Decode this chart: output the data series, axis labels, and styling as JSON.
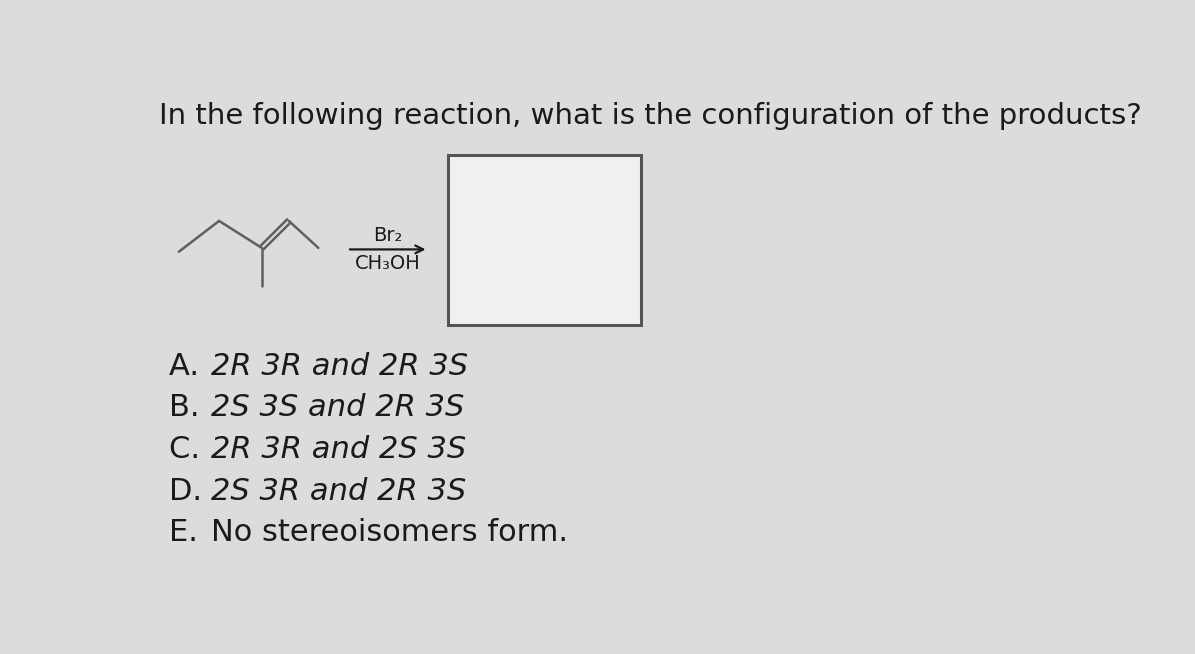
{
  "title": "In the following reaction, what is the configuration of the products?",
  "title_fontsize": 21,
  "background_color": "#dcdcdc",
  "choices": [
    {
      "label": "A. ",
      "text": "2R 3R and 2R 3S"
    },
    {
      "label": "B. ",
      "text": "2S 3S and 2R 3S"
    },
    {
      "label": "C. ",
      "text": "2R 3R and 2S 3S"
    },
    {
      "label": "D. ",
      "text": "2S 3R and 2R 3S"
    },
    {
      "label": "E. ",
      "text": "No stereoisomers form.",
      "plain": true
    }
  ],
  "reagent_top": "Br₂",
  "reagent_bottom": "CH₃OH",
  "text_color": "#1a1a1a",
  "mol_line_color": "#606060",
  "box_edge_color": "#555555",
  "choice_fontsize": 22,
  "arrow_color": "#1a1a1a"
}
